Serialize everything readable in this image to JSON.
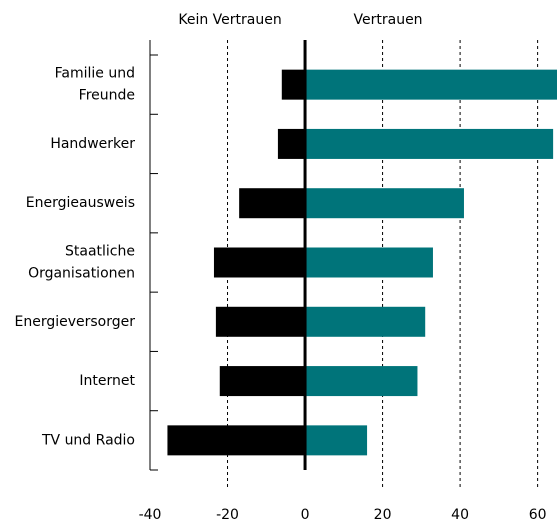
{
  "chart_data": {
    "type": "diverging-bar",
    "categories": [
      "Familie und Freunde",
      "Handwerker",
      "Energieausweis",
      "Staatliche Organisationen",
      "Energieversorger",
      "Internet",
      "TV und Radio"
    ],
    "series": [
      {
        "name": "Kein Vertrauen",
        "color": "#000000",
        "values": [
          -6,
          -7,
          -17,
          -23.5,
          -23,
          -22,
          -35.5
        ]
      },
      {
        "name": "Vertrauen",
        "color": "#00747a",
        "values": [
          65,
          64,
          41,
          33,
          31,
          29,
          16
        ]
      }
    ],
    "xlim": [
      -40,
      65
    ],
    "xticks": [
      -40,
      -20,
      0,
      20,
      40,
      60
    ],
    "grid": true
  }
}
